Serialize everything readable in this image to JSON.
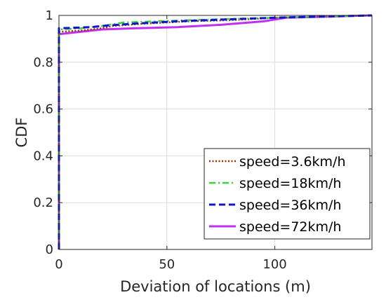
{
  "chart_data": {
    "type": "line",
    "title": "",
    "xlabel": "Deviation of locations (m)",
    "ylabel": "CDF",
    "xlim": [
      0,
      145
    ],
    "ylim": [
      0,
      1
    ],
    "xticks": [
      0,
      50,
      100
    ],
    "yticks": [
      0,
      0.2,
      0.4,
      0.6,
      0.8,
      1
    ],
    "xtick_labels": [
      "0",
      "50",
      "100"
    ],
    "ytick_labels": [
      "0",
      "0.2",
      "0.4",
      "0.6",
      "0.8",
      "1"
    ],
    "grid": true,
    "legend_position": "bottom-right",
    "series": [
      {
        "name": "speed=3.6km/h",
        "color": "#a52a00",
        "style": "dotted",
        "points": [
          [
            0,
            0
          ],
          [
            0,
            0.93
          ],
          [
            10,
            0.935
          ],
          [
            20,
            0.945
          ],
          [
            25,
            0.955
          ],
          [
            40,
            0.965
          ],
          [
            60,
            0.975
          ],
          [
            80,
            0.98
          ],
          [
            100,
            0.99
          ],
          [
            120,
            0.995
          ],
          [
            135,
            0.998
          ],
          [
            145,
            1.0
          ]
        ]
      },
      {
        "name": "speed=18km/h",
        "color": "#3cd040",
        "style": "dashdot",
        "points": [
          [
            0,
            0
          ],
          [
            0,
            0.94
          ],
          [
            10,
            0.945
          ],
          [
            20,
            0.955
          ],
          [
            30,
            0.97
          ],
          [
            45,
            0.975
          ],
          [
            60,
            0.98
          ],
          [
            80,
            0.985
          ],
          [
            100,
            0.99
          ],
          [
            120,
            0.995
          ],
          [
            135,
            0.998
          ],
          [
            145,
            1.0
          ]
        ]
      },
      {
        "name": "speed=36km/h",
        "color": "#0a18c8",
        "style": "dashed",
        "points": [
          [
            0,
            0
          ],
          [
            0,
            0.945
          ],
          [
            15,
            0.95
          ],
          [
            20,
            0.955
          ],
          [
            35,
            0.965
          ],
          [
            55,
            0.975
          ],
          [
            75,
            0.982
          ],
          [
            100,
            0.99
          ],
          [
            120,
            0.995
          ],
          [
            135,
            0.998
          ],
          [
            145,
            1.0
          ]
        ]
      },
      {
        "name": "speed=72km/h",
        "color": "#c030f0",
        "style": "solid",
        "points": [
          [
            0,
            0
          ],
          [
            0,
            0.92
          ],
          [
            10,
            0.93
          ],
          [
            20,
            0.94
          ],
          [
            35,
            0.945
          ],
          [
            55,
            0.95
          ],
          [
            75,
            0.96
          ],
          [
            95,
            0.975
          ],
          [
            105,
            0.99
          ],
          [
            125,
            0.995
          ],
          [
            135,
            0.998
          ],
          [
            145,
            1.0
          ]
        ]
      }
    ]
  }
}
